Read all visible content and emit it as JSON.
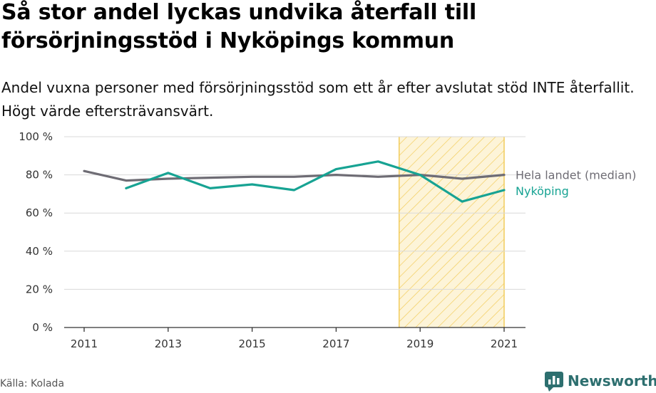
{
  "title": "Så stor andel lyckas undvika återfall till försörjningsstöd i Nyköpings kommun",
  "subtitle": "Andel vuxna personer med försörjningsstöd som ett år efter avslutat stöd INTE återfallit. Högt värde eftersträvansvärt.",
  "source": "Källa: Kolada",
  "brand": "Newsworthy",
  "colors": {
    "median": "#6e6c74",
    "municipality": "#17a393",
    "highlight_stroke": "#f2cc5c",
    "highlight_fill": "#fdf4d8",
    "grid": "#d9d9d9",
    "brand": "#2d6f6f"
  },
  "chart_data": {
    "type": "line",
    "x": [
      2011,
      2012,
      2013,
      2014,
      2015,
      2016,
      2017,
      2018,
      2019,
      2020,
      2021
    ],
    "x_ticks": [
      2011,
      2013,
      2015,
      2017,
      2019,
      2021
    ],
    "x_tick_labels": [
      "2011",
      "2013",
      "2015",
      "2017",
      "2019",
      "2021"
    ],
    "ylim": [
      0,
      100
    ],
    "y_ticks": [
      0,
      20,
      40,
      60,
      80,
      100
    ],
    "y_tick_labels": [
      "0 %",
      "20 %",
      "40 %",
      "60 %",
      "80 %",
      "100 %"
    ],
    "grid": true,
    "highlight_range": [
      2018.5,
      2021
    ],
    "series": [
      {
        "name": "Hela landet (median)",
        "color_key": "median",
        "values": [
          82,
          77,
          78,
          78.5,
          79,
          79,
          80,
          79,
          80,
          78,
          80
        ]
      },
      {
        "name": "Nyköping",
        "color_key": "municipality",
        "values": [
          null,
          73,
          81,
          73,
          75,
          72,
          83,
          87,
          80,
          66,
          72
        ]
      }
    ]
  }
}
